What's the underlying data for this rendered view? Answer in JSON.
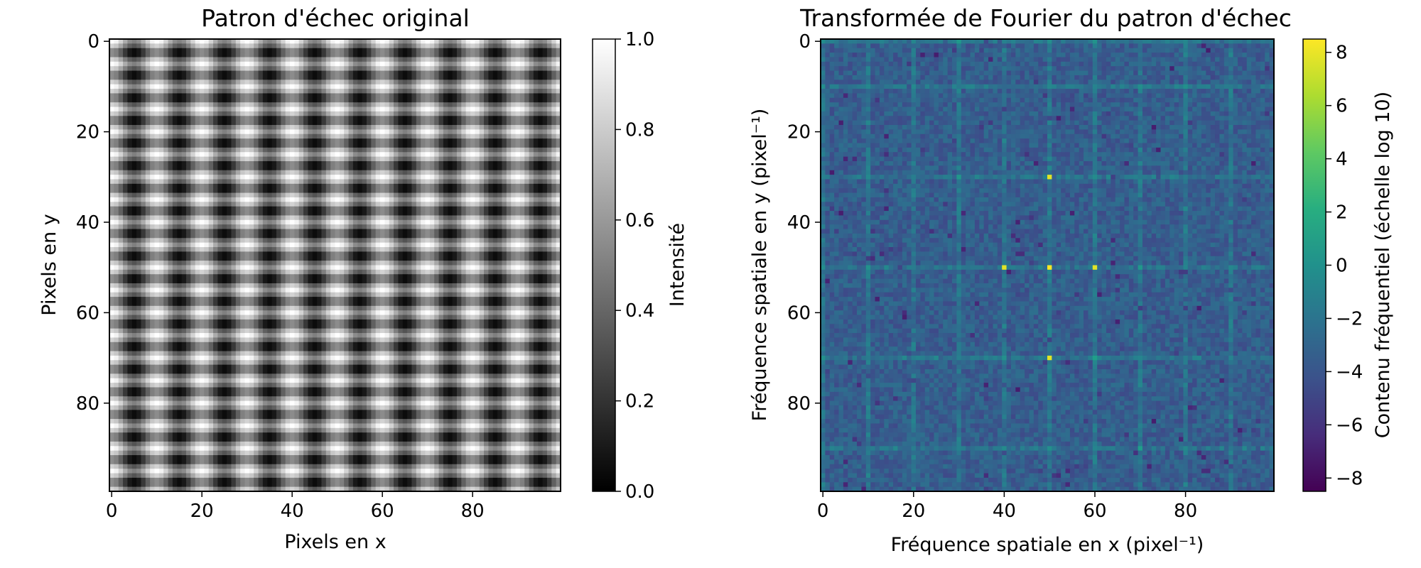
{
  "chart_data": [
    {
      "type": "heatmap",
      "title": "Patron d'échec original",
      "xlabel": "Pixels en x",
      "ylabel": "Pixels en y",
      "xlim": [
        0,
        99
      ],
      "ylim": [
        99,
        0
      ],
      "x_ticks": [
        "0",
        "20",
        "40",
        "60",
        "80"
      ],
      "y_ticks": [
        "0",
        "20",
        "40",
        "60",
        "80"
      ],
      "grid": false,
      "colormap": "gray",
      "pattern": {
        "shape": [
          100,
          100
        ],
        "formula": "0.5 + 0.25*cos(2*pi*x/10) + 0.25*cos(2*pi*y/5)",
        "period_x": 10,
        "period_y": 5
      },
      "colorbar": {
        "label": "Intensité",
        "range": [
          0.0,
          1.0
        ],
        "ticks": [
          "0.0",
          "0.2",
          "0.4",
          "0.6",
          "0.8",
          "1.0"
        ]
      }
    },
    {
      "type": "heatmap",
      "title": "Transformée de Fourier du patron d'échec",
      "xlabel": "Fréquence spatiale en x (pixel⁻¹)",
      "ylabel": "Fréquence spatiale en y (pixel⁻¹)",
      "xlim": [
        0,
        99
      ],
      "ylim": [
        99,
        0
      ],
      "x_ticks": [
        "0",
        "20",
        "40",
        "60",
        "80"
      ],
      "y_ticks": [
        "0",
        "20",
        "40",
        "60",
        "80"
      ],
      "grid": false,
      "colormap": "viridis",
      "background_level": -3.5,
      "peaks": [
        {
          "x": 50,
          "y": 50,
          "value": 8.5
        },
        {
          "x": 40,
          "y": 50,
          "value": 7.8
        },
        {
          "x": 60,
          "y": 50,
          "value": 7.8
        },
        {
          "x": 50,
          "y": 30,
          "value": 7.8
        },
        {
          "x": 50,
          "y": 70,
          "value": 7.8
        }
      ],
      "bright_columns": [
        0,
        10,
        20,
        30,
        40,
        50,
        60,
        70,
        80,
        90
      ],
      "bright_rows": [
        0,
        10,
        30,
        50,
        70,
        90
      ],
      "colorbar": {
        "label": "Contenu fréquentiel (échelle log 10)",
        "range": [
          -8.5,
          8.5
        ],
        "ticks": [
          "−8",
          "−6",
          "−4",
          "−2",
          "0",
          "2",
          "4",
          "6",
          "8"
        ]
      }
    }
  ]
}
